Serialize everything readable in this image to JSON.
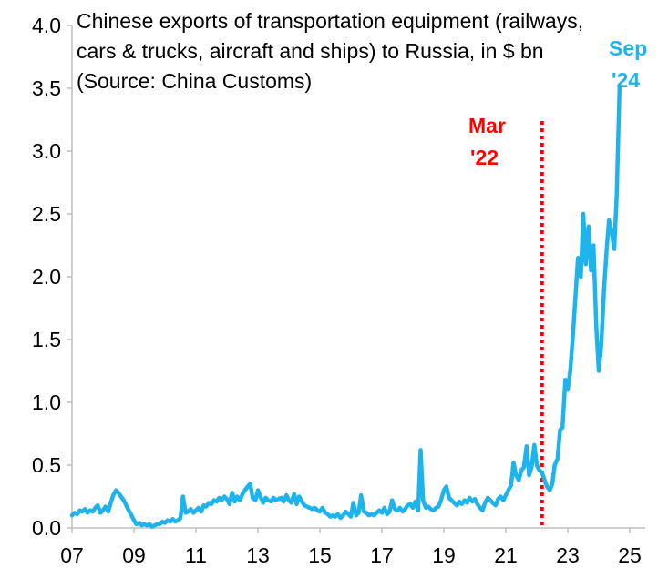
{
  "chart_data": {
    "type": "line",
    "title_lines": [
      "Chinese exports of transportation equipment (railways,",
      "cars & trucks, aircraft and ships) to Russia, in $ bn",
      "(Source: China Customs)"
    ],
    "xlabel": "",
    "ylabel": "",
    "xlim": [
      2007,
      2025.5
    ],
    "ylim": [
      0,
      4.0
    ],
    "x_ticks": [
      {
        "value": 2007,
        "label": "07"
      },
      {
        "value": 2009,
        "label": "09"
      },
      {
        "value": 2011,
        "label": "11"
      },
      {
        "value": 2013,
        "label": "13"
      },
      {
        "value": 2015,
        "label": "15"
      },
      {
        "value": 2017,
        "label": "17"
      },
      {
        "value": 2019,
        "label": "19"
      },
      {
        "value": 2021,
        "label": "21"
      },
      {
        "value": 2023,
        "label": "23"
      },
      {
        "value": 2025,
        "label": "25"
      }
    ],
    "y_ticks": [
      {
        "value": 0.0,
        "label": "0.0"
      },
      {
        "value": 0.5,
        "label": "0.5"
      },
      {
        "value": 1.0,
        "label": "1.0"
      },
      {
        "value": 1.5,
        "label": "1.5"
      },
      {
        "value": 2.0,
        "label": "2.0"
      },
      {
        "value": 2.5,
        "label": "2.5"
      },
      {
        "value": 3.0,
        "label": "3.0"
      },
      {
        "value": 3.5,
        "label": "3.5"
      },
      {
        "value": 4.0,
        "label": "4.0"
      }
    ],
    "grid": false,
    "colors": {
      "series": "#1eb4eb",
      "marker_line": "#ff0000",
      "axis": "#bfbfbf"
    },
    "annotations": [
      {
        "text_lines": [
          "Mar",
          "'22"
        ],
        "x": 2022.17,
        "style": "vertical-dotted-line",
        "color": "#ff0000"
      },
      {
        "text_lines": [
          "Sep",
          "'24"
        ],
        "x": 2024.67,
        "color": "#1eb4eb"
      }
    ],
    "series": [
      {
        "color": "#1eb4eb",
        "points": [
          [
            2007.0,
            0.1
          ],
          [
            2007.08,
            0.12
          ],
          [
            2007.17,
            0.11
          ],
          [
            2007.25,
            0.14
          ],
          [
            2007.33,
            0.13
          ],
          [
            2007.42,
            0.15
          ],
          [
            2007.5,
            0.12
          ],
          [
            2007.58,
            0.14
          ],
          [
            2007.67,
            0.13
          ],
          [
            2007.75,
            0.16
          ],
          [
            2007.83,
            0.18
          ],
          [
            2007.92,
            0.12
          ],
          [
            2008.0,
            0.14
          ],
          [
            2008.08,
            0.17
          ],
          [
            2008.17,
            0.13
          ],
          [
            2008.25,
            0.2
          ],
          [
            2008.33,
            0.26
          ],
          [
            2008.42,
            0.3
          ],
          [
            2008.5,
            0.28
          ],
          [
            2008.58,
            0.25
          ],
          [
            2008.67,
            0.22
          ],
          [
            2008.75,
            0.18
          ],
          [
            2008.83,
            0.14
          ],
          [
            2008.92,
            0.1
          ],
          [
            2009.0,
            0.06
          ],
          [
            2009.08,
            0.03
          ],
          [
            2009.17,
            0.04
          ],
          [
            2009.25,
            0.02
          ],
          [
            2009.33,
            0.03
          ],
          [
            2009.42,
            0.02
          ],
          [
            2009.5,
            0.03
          ],
          [
            2009.58,
            0.01
          ],
          [
            2009.67,
            0.02
          ],
          [
            2009.75,
            0.03
          ],
          [
            2009.83,
            0.03
          ],
          [
            2009.92,
            0.05
          ],
          [
            2010.0,
            0.04
          ],
          [
            2010.08,
            0.06
          ],
          [
            2010.17,
            0.05
          ],
          [
            2010.25,
            0.07
          ],
          [
            2010.33,
            0.05
          ],
          [
            2010.42,
            0.06
          ],
          [
            2010.5,
            0.08
          ],
          [
            2010.58,
            0.25
          ],
          [
            2010.67,
            0.12
          ],
          [
            2010.75,
            0.13
          ],
          [
            2010.83,
            0.15
          ],
          [
            2010.92,
            0.12
          ],
          [
            2011.0,
            0.14
          ],
          [
            2011.08,
            0.16
          ],
          [
            2011.17,
            0.13
          ],
          [
            2011.25,
            0.18
          ],
          [
            2011.33,
            0.17
          ],
          [
            2011.42,
            0.2
          ],
          [
            2011.5,
            0.19
          ],
          [
            2011.58,
            0.22
          ],
          [
            2011.67,
            0.21
          ],
          [
            2011.75,
            0.24
          ],
          [
            2011.83,
            0.22
          ],
          [
            2011.92,
            0.25
          ],
          [
            2012.0,
            0.23
          ],
          [
            2012.08,
            0.19
          ],
          [
            2012.17,
            0.28
          ],
          [
            2012.25,
            0.21
          ],
          [
            2012.33,
            0.25
          ],
          [
            2012.42,
            0.22
          ],
          [
            2012.5,
            0.27
          ],
          [
            2012.58,
            0.3
          ],
          [
            2012.67,
            0.33
          ],
          [
            2012.75,
            0.35
          ],
          [
            2012.83,
            0.24
          ],
          [
            2012.92,
            0.22
          ],
          [
            2013.0,
            0.3
          ],
          [
            2013.08,
            0.25
          ],
          [
            2013.17,
            0.2
          ],
          [
            2013.25,
            0.24
          ],
          [
            2013.33,
            0.22
          ],
          [
            2013.42,
            0.21
          ],
          [
            2013.5,
            0.24
          ],
          [
            2013.58,
            0.22
          ],
          [
            2013.67,
            0.23
          ],
          [
            2013.75,
            0.24
          ],
          [
            2013.83,
            0.21
          ],
          [
            2013.92,
            0.26
          ],
          [
            2014.0,
            0.22
          ],
          [
            2014.08,
            0.2
          ],
          [
            2014.17,
            0.27
          ],
          [
            2014.25,
            0.19
          ],
          [
            2014.33,
            0.25
          ],
          [
            2014.42,
            0.21
          ],
          [
            2014.5,
            0.18
          ],
          [
            2014.58,
            0.17
          ],
          [
            2014.67,
            0.16
          ],
          [
            2014.75,
            0.15
          ],
          [
            2014.83,
            0.16
          ],
          [
            2014.92,
            0.14
          ],
          [
            2015.0,
            0.13
          ],
          [
            2015.08,
            0.16
          ],
          [
            2015.17,
            0.12
          ],
          [
            2015.25,
            0.11
          ],
          [
            2015.33,
            0.09
          ],
          [
            2015.42,
            0.1
          ],
          [
            2015.5,
            0.09
          ],
          [
            2015.58,
            0.11
          ],
          [
            2015.67,
            0.08
          ],
          [
            2015.75,
            0.1
          ],
          [
            2015.83,
            0.13
          ],
          [
            2015.92,
            0.11
          ],
          [
            2016.0,
            0.09
          ],
          [
            2016.08,
            0.2
          ],
          [
            2016.17,
            0.1
          ],
          [
            2016.25,
            0.12
          ],
          [
            2016.33,
            0.26
          ],
          [
            2016.42,
            0.13
          ],
          [
            2016.5,
            0.12
          ],
          [
            2016.58,
            0.1
          ],
          [
            2016.67,
            0.11
          ],
          [
            2016.75,
            0.1
          ],
          [
            2016.83,
            0.12
          ],
          [
            2016.92,
            0.14
          ],
          [
            2017.0,
            0.12
          ],
          [
            2017.08,
            0.16
          ],
          [
            2017.17,
            0.11
          ],
          [
            2017.25,
            0.13
          ],
          [
            2017.33,
            0.22
          ],
          [
            2017.42,
            0.15
          ],
          [
            2017.5,
            0.14
          ],
          [
            2017.58,
            0.16
          ],
          [
            2017.67,
            0.13
          ],
          [
            2017.75,
            0.15
          ],
          [
            2017.83,
            0.18
          ],
          [
            2017.92,
            0.19
          ],
          [
            2018.0,
            0.16
          ],
          [
            2018.08,
            0.21
          ],
          [
            2018.17,
            0.14
          ],
          [
            2018.25,
            0.62
          ],
          [
            2018.33,
            0.22
          ],
          [
            2018.42,
            0.16
          ],
          [
            2018.5,
            0.17
          ],
          [
            2018.58,
            0.15
          ],
          [
            2018.67,
            0.14
          ],
          [
            2018.75,
            0.16
          ],
          [
            2018.83,
            0.17
          ],
          [
            2018.92,
            0.23
          ],
          [
            2019.0,
            0.3
          ],
          [
            2019.08,
            0.33
          ],
          [
            2019.17,
            0.24
          ],
          [
            2019.25,
            0.22
          ],
          [
            2019.33,
            0.2
          ],
          [
            2019.42,
            0.18
          ],
          [
            2019.5,
            0.21
          ],
          [
            2019.58,
            0.19
          ],
          [
            2019.67,
            0.22
          ],
          [
            2019.75,
            0.2
          ],
          [
            2019.83,
            0.24
          ],
          [
            2019.92,
            0.21
          ],
          [
            2020.0,
            0.23
          ],
          [
            2020.08,
            0.19
          ],
          [
            2020.17,
            0.16
          ],
          [
            2020.25,
            0.14
          ],
          [
            2020.33,
            0.2
          ],
          [
            2020.42,
            0.24
          ],
          [
            2020.5,
            0.22
          ],
          [
            2020.58,
            0.2
          ],
          [
            2020.67,
            0.18
          ],
          [
            2020.75,
            0.23
          ],
          [
            2020.83,
            0.25
          ],
          [
            2020.92,
            0.22
          ],
          [
            2021.0,
            0.26
          ],
          [
            2021.08,
            0.3
          ],
          [
            2021.17,
            0.34
          ],
          [
            2021.25,
            0.52
          ],
          [
            2021.33,
            0.42
          ],
          [
            2021.42,
            0.38
          ],
          [
            2021.5,
            0.46
          ],
          [
            2021.58,
            0.48
          ],
          [
            2021.67,
            0.65
          ],
          [
            2021.75,
            0.42
          ],
          [
            2021.83,
            0.48
          ],
          [
            2021.92,
            0.66
          ],
          [
            2022.0,
            0.5
          ],
          [
            2022.08,
            0.46
          ],
          [
            2022.17,
            0.44
          ],
          [
            2022.25,
            0.38
          ],
          [
            2022.33,
            0.33
          ],
          [
            2022.42,
            0.3
          ],
          [
            2022.5,
            0.35
          ],
          [
            2022.58,
            0.5
          ],
          [
            2022.67,
            0.55
          ],
          [
            2022.75,
            0.78
          ],
          [
            2022.83,
            0.8
          ],
          [
            2022.92,
            1.18
          ],
          [
            2023.0,
            1.1
          ],
          [
            2023.08,
            1.25
          ],
          [
            2023.17,
            1.55
          ],
          [
            2023.25,
            1.85
          ],
          [
            2023.33,
            2.15
          ],
          [
            2023.42,
            2.0
          ],
          [
            2023.5,
            2.5
          ],
          [
            2023.58,
            2.1
          ],
          [
            2023.67,
            2.4
          ],
          [
            2023.75,
            2.05
          ],
          [
            2023.83,
            2.25
          ],
          [
            2023.92,
            1.6
          ],
          [
            2024.0,
            1.25
          ],
          [
            2024.08,
            1.45
          ],
          [
            2024.17,
            1.9
          ],
          [
            2024.25,
            2.2
          ],
          [
            2024.33,
            2.45
          ],
          [
            2024.42,
            2.35
          ],
          [
            2024.5,
            2.22
          ],
          [
            2024.58,
            2.65
          ],
          [
            2024.67,
            3.5
          ]
        ]
      }
    ]
  }
}
